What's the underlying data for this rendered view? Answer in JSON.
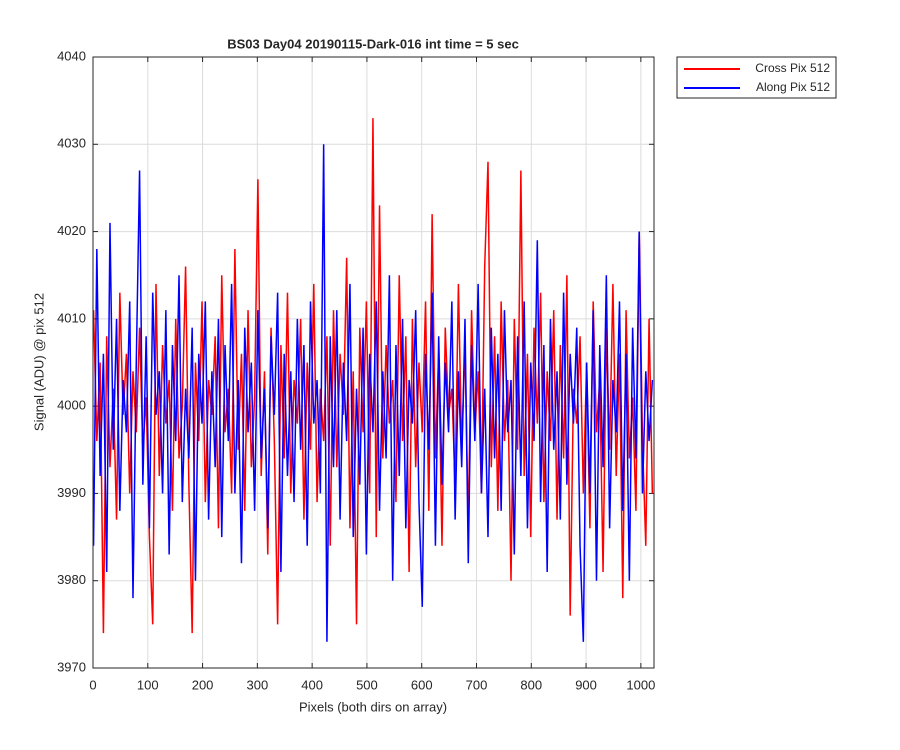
{
  "chart_data": {
    "type": "line",
    "title": "BS03 Day04 20190115-Dark-016 int time = 5 sec",
    "xlabel": "Pixels (both dirs on array)",
    "ylabel": "Signal (ADU) @ pix 512",
    "xlim": [
      0,
      1024
    ],
    "ylim": [
      3970,
      4040
    ],
    "xticks": [
      0,
      100,
      200,
      300,
      400,
      500,
      600,
      700,
      800,
      900,
      1000
    ],
    "yticks": [
      3970,
      3980,
      3990,
      4000,
      4010,
      4020,
      4030,
      4040
    ],
    "grid": true,
    "legend": "outside-top-right",
    "x": [
      1,
      7,
      13,
      19,
      25,
      31,
      37,
      43,
      49,
      55,
      61,
      67,
      73,
      79,
      85,
      91,
      97,
      103,
      109,
      115,
      121,
      127,
      133,
      139,
      145,
      151,
      157,
      163,
      169,
      175,
      181,
      187,
      193,
      199,
      205,
      211,
      217,
      223,
      229,
      235,
      241,
      247,
      253,
      259,
      265,
      271,
      277,
      283,
      289,
      295,
      301,
      307,
      313,
      319,
      325,
      331,
      337,
      343,
      349,
      355,
      361,
      367,
      373,
      379,
      385,
      391,
      397,
      403,
      409,
      415,
      421,
      427,
      433,
      439,
      445,
      451,
      457,
      463,
      469,
      475,
      481,
      487,
      493,
      499,
      505,
      511,
      517,
      523,
      529,
      535,
      541,
      547,
      553,
      559,
      565,
      571,
      577,
      583,
      589,
      595,
      601,
      607,
      613,
      619,
      625,
      631,
      637,
      643,
      649,
      655,
      661,
      667,
      673,
      679,
      685,
      691,
      697,
      703,
      709,
      715,
      721,
      727,
      733,
      739,
      745,
      751,
      757,
      763,
      769,
      775,
      781,
      787,
      793,
      799,
      805,
      811,
      817,
      823,
      829,
      835,
      841,
      847,
      853,
      859,
      865,
      871,
      877,
      883,
      889,
      895,
      901,
      907,
      913,
      919,
      925,
      931,
      937,
      943,
      949,
      955,
      961,
      967,
      973,
      979,
      985,
      991,
      997,
      1003,
      1009,
      1015,
      1021
    ],
    "series": [
      {
        "name": "Cross Pix 512",
        "color": "#ff0000",
        "values": [
          4011,
          3996,
          4005,
          3974,
          4008,
          3993,
          4002,
          3987,
          4013,
          3999,
          4006,
          3990,
          4004,
          3997,
          4009,
          3995,
          4001,
          3985,
          3975,
          4014,
          3992,
          4007,
          3998,
          4003,
          3988,
          4010,
          3994,
          4000,
          4016,
          3991,
          3974,
          4005,
          3996,
          4012,
          3989,
          4003,
          3999,
          4008,
          3986,
          4015,
          3997,
          4002,
          3990,
          4018,
          3995,
          4006,
          3988,
          4011,
          3993,
          4001,
          4026,
          3992,
          4004,
          3983,
          4009,
          3996,
          3975,
          4007,
          3994,
          4013,
          3990,
          4003,
          3998,
          4010,
          3987,
          4005,
          3995,
          4014,
          3989,
          4002,
          3996,
          4008,
          3984,
          4011,
          3993,
          4006,
          3999,
          4017,
          3986,
          4004,
          3975,
          4009,
          3997,
          4012,
          3990,
          4033,
          3985,
          4023,
          3994,
          4007,
          3998,
          4003,
          3989,
          4015,
          3996,
          4008,
          3981,
          4010,
          3993,
          4005,
          3997,
          4012,
          3988,
          4022,
          3994,
          4006,
          3984,
          4009,
          3999,
          4002,
          3991,
          4014,
          3995,
          4007,
          3986,
          4011,
          3997,
          4004,
          3990,
          4016,
          4028,
          3993,
          4008,
          3988,
          4012,
          3996,
          4003,
          3980,
          4010,
          3995,
          4027,
          3992,
          4006,
          3985,
          4009,
          3998,
          4013,
          3989,
          4004,
          3996,
          4011,
          3987,
          4007,
          3994,
          4015,
          3976,
          4002,
          3998,
          4008,
          3990,
          4005,
          3986,
          4012,
          3997,
          4003,
          3981,
          4009,
          3995,
          4014,
          3992,
          4006,
          3978,
          4011,
          3994,
          4001,
          3988,
          4020,
          3996,
          3984,
          4010,
          3990
        ]
      },
      {
        "name": "Along Pix 512",
        "color": "#0000ff",
        "values": [
          3984,
          4018,
          3992,
          4006,
          3981,
          4021,
          3995,
          4010,
          3988,
          4003,
          3997,
          4012,
          3978,
          4005,
          4027,
          3991,
          4008,
          3986,
          4013,
          3999,
          4004,
          3990,
          4011,
          3983,
          4007,
          3996,
          4015,
          3989,
          4002,
          3994,
          4009,
          3980,
          4006,
          3998,
          4012,
          3987,
          4004,
          3993,
          4010,
          3985,
          4007,
          3996,
          4014,
          3990,
          4003,
          3982,
          4009,
          3997,
          4005,
          3988,
          4011,
          3994,
          4002,
          3986,
          4008,
          3999,
          4013,
          3981,
          4006,
          3992,
          4004,
          3989,
          4010,
          3995,
          4007,
          3984,
          4012,
          3998,
          4003,
          3990,
          4030,
          3973,
          4008,
          3993,
          4011,
          3987,
          4005,
          3996,
          4014,
          3985,
          4002,
          3991,
          4009,
          3983,
          4006,
          3997,
          4012,
          3988,
          4004,
          3994,
          4015,
          3980,
          4007,
          3992,
          4010,
          3986,
          4003,
          3998,
          4011,
          3989,
          3977,
          4006,
          3995,
          4013,
          3984,
          4008,
          3991,
          4005,
          3997,
          4012,
          3987,
          4004,
          3993,
          4010,
          3982,
          4007,
          3996,
          4014,
          3990,
          4002,
          3985,
          4009,
          3994,
          4006,
          3988,
          4011,
          3997,
          4003,
          3983,
          4008,
          3992,
          4012,
          3986,
          4005,
          3996,
          4019,
          3989,
          4007,
          3981,
          4010,
          3995,
          4004,
          3987,
          4013,
          3991,
          4006,
          3998,
          4009,
          3984,
          3973,
          4005,
          3990,
          4011,
          3980,
          4007,
          3993,
          4015,
          3986,
          4003,
          3997,
          4012,
          3988,
          4006,
          3980,
          4009,
          3994,
          4020,
          3990,
          4004,
          3996,
          4003
        ]
      }
    ]
  }
}
